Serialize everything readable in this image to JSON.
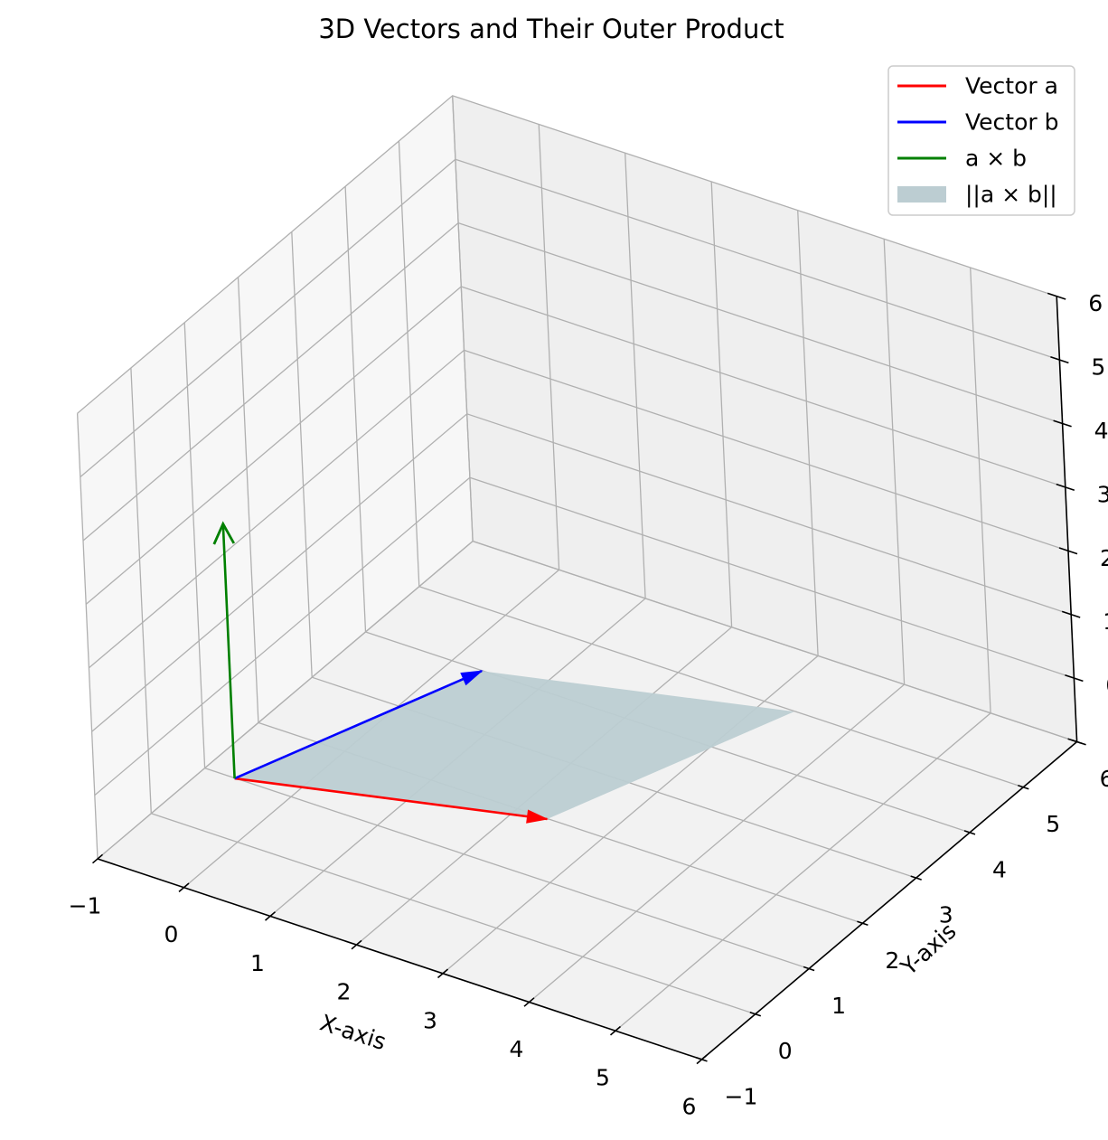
{
  "chart_data": {
    "type": "3d-vectors",
    "title": "3D Vectors and Their Outer Product",
    "xlabel": "X-axis",
    "ylabel": "Y-axis",
    "zlabel": "",
    "xlim": [
      -1,
      6
    ],
    "ylim": [
      -1,
      6
    ],
    "zlim": [
      -1,
      6
    ],
    "ticks": [
      -1,
      0,
      1,
      2,
      3,
      4,
      5,
      6
    ],
    "tick_labels": [
      "−1",
      "0",
      "1",
      "2",
      "3",
      "4",
      "5",
      "6"
    ],
    "grid": true,
    "legend_position": "top-right",
    "origin": [
      0,
      0,
      0
    ],
    "series": [
      {
        "name": "Vector a",
        "type": "arrow",
        "color": "#ff0000",
        "vector": [
          3,
          1,
          0
        ]
      },
      {
        "name": "Vector b",
        "type": "arrow",
        "color": "#0000ff",
        "vector": [
          1,
          3,
          0
        ]
      },
      {
        "name": "a × b",
        "type": "arrow",
        "color": "#008000",
        "vector": [
          0,
          0,
          4
        ]
      },
      {
        "name": "||a × b||",
        "type": "parallelogram",
        "color": "#bccdd2",
        "vectors": [
          [
            3,
            1,
            0
          ],
          [
            1,
            3,
            0
          ]
        ]
      }
    ]
  }
}
